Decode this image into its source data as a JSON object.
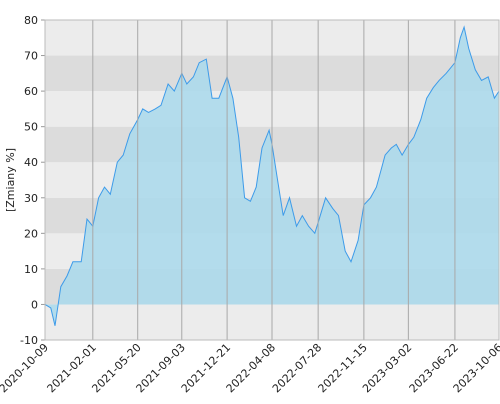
{
  "chart_data": {
    "type": "area",
    "y_label": "[Zmiany %]",
    "x": [
      "2020-10-09",
      "2020-10-23",
      "2020-11-02",
      "2020-11-16",
      "2020-12-01",
      "2020-12-15",
      "2021-01-04",
      "2021-01-18",
      "2021-02-01",
      "2021-02-15",
      "2021-03-01",
      "2021-03-15",
      "2021-04-01",
      "2021-04-15",
      "2021-05-01",
      "2021-05-20",
      "2021-06-01",
      "2021-06-15",
      "2021-07-01",
      "2021-07-15",
      "2021-08-01",
      "2021-08-16",
      "2021-09-03",
      "2021-09-15",
      "2021-10-01",
      "2021-10-15",
      "2021-11-01",
      "2021-11-15",
      "2021-12-01",
      "2021-12-21",
      "2022-01-04",
      "2022-01-18",
      "2022-02-01",
      "2022-02-15",
      "2022-03-01",
      "2022-03-15",
      "2022-04-01",
      "2022-04-08",
      "2022-04-20",
      "2022-05-05",
      "2022-05-20",
      "2022-06-06",
      "2022-06-20",
      "2022-07-05",
      "2022-07-20",
      "2022-07-28",
      "2022-08-15",
      "2022-09-01",
      "2022-09-15",
      "2022-10-01",
      "2022-10-15",
      "2022-11-01",
      "2022-11-15",
      "2022-12-01",
      "2022-12-15",
      "2023-01-05",
      "2023-01-20",
      "2023-02-01",
      "2023-02-15",
      "2023-03-02",
      "2023-03-15",
      "2023-04-01",
      "2023-04-15",
      "2023-05-01",
      "2023-05-15",
      "2023-06-01",
      "2023-06-22",
      "2023-07-05",
      "2023-07-14",
      "2023-07-25",
      "2023-08-10",
      "2023-08-25",
      "2023-09-10",
      "2023-09-25",
      "2023-10-06"
    ],
    "values": [
      0,
      -1,
      -6,
      5,
      8,
      12,
      12,
      24,
      22,
      30,
      33,
      31,
      40,
      42,
      48,
      52,
      55,
      54,
      55,
      56,
      62,
      60,
      65,
      62,
      64,
      68,
      69,
      58,
      58,
      64,
      58,
      47,
      30,
      29,
      33,
      44,
      49,
      45,
      36,
      25,
      30,
      22,
      25,
      22,
      20,
      23,
      30,
      27,
      25,
      15,
      12,
      18,
      28,
      30,
      33,
      42,
      44,
      45,
      42,
      45,
      47,
      52,
      58,
      61,
      63,
      65,
      68,
      75,
      78,
      72,
      66,
      63,
      64,
      58,
      60
    ],
    "line_color": "#3d9be9",
    "fill_color": "#a9d9ec",
    "xlim": [
      "2020-10-09",
      "2023-10-06"
    ],
    "xticks": [
      "2020-10-09",
      "2021-02-01",
      "2021-05-20",
      "2021-09-03",
      "2021-12-21",
      "2022-04-08",
      "2022-07-28",
      "2022-11-15",
      "2023-03-02",
      "2023-06-22",
      "2023-10-06"
    ],
    "ylim": [
      -10,
      80
    ],
    "yticks": [
      -10,
      0,
      10,
      20,
      30,
      40,
      50,
      60,
      70,
      80
    ],
    "grid": true
  }
}
